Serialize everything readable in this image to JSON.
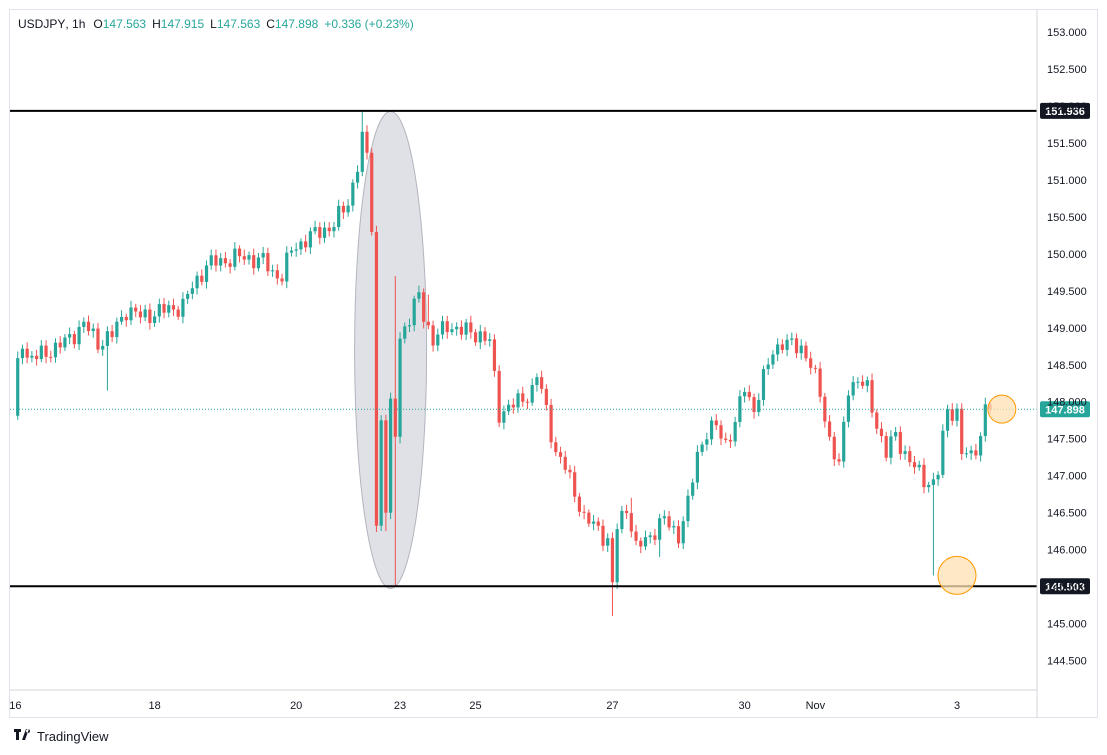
{
  "legend": {
    "symbol": "USDJPY",
    "interval": "1h",
    "open_label": "O",
    "open": "147.563",
    "high_label": "H",
    "high": "147.915",
    "low_label": "L",
    "low": "147.563",
    "close_label": "C",
    "close": "147.898",
    "change": "+0.336 (+0.23%)"
  },
  "footer": {
    "brand": "TradingView",
    "logo_icon": "tradingview-logo-icon"
  },
  "colors": {
    "up": "#26a69a",
    "down": "#ef5350",
    "line": "#000000",
    "price_tag": "#26a69a",
    "ellipse": "#c7c9d1",
    "circle_fill": "#ffe0b2",
    "circle_stroke": "#ff9800"
  },
  "chart_data": {
    "type": "candlestick",
    "symbol": "USDJPY",
    "interval": "1h",
    "y_axis": {
      "range": [
        144.1,
        153.3
      ],
      "ticks": [
        "153.000",
        "152.500",
        "152.000",
        "151.500",
        "151.000",
        "150.500",
        "150.000",
        "149.500",
        "149.000",
        "148.500",
        "148.000",
        "147.500",
        "147.000",
        "146.500",
        "146.000",
        "145.500",
        "145.000",
        "144.500"
      ],
      "tick_values": [
        153.0,
        152.5,
        152.0,
        151.5,
        151.0,
        150.5,
        150.0,
        149.5,
        149.0,
        148.5,
        148.0,
        147.5,
        147.0,
        146.5,
        146.0,
        145.5,
        145.0,
        144.5
      ]
    },
    "x_axis": {
      "ticks": [
        "16",
        "18",
        "20",
        "23",
        "25",
        "27",
        "30",
        "Nov",
        "3"
      ],
      "tick_positions": [
        0.5,
        30,
        60,
        82,
        98,
        127,
        155,
        170,
        200
      ]
    },
    "price_path": [
      [
        0,
        147.75
      ],
      [
        1,
        148.5
      ],
      [
        2,
        148.85
      ],
      [
        3,
        148.6
      ],
      [
        5,
        148.6
      ],
      [
        8,
        148.7
      ],
      [
        11,
        148.8
      ],
      [
        15,
        149.05
      ],
      [
        18,
        148.8
      ],
      [
        21,
        148.9
      ],
      [
        24,
        149.25
      ],
      [
        27,
        149.15
      ],
      [
        30,
        149.2
      ],
      [
        33,
        149.25
      ],
      [
        36,
        149.3
      ],
      [
        38,
        149.55
      ],
      [
        41,
        149.85
      ],
      [
        44,
        149.9
      ],
      [
        47,
        149.95
      ],
      [
        50,
        149.95
      ],
      [
        53,
        149.9
      ],
      [
        55,
        149.75
      ],
      [
        57,
        149.7
      ],
      [
        59,
        150.05
      ],
      [
        62,
        150.2
      ],
      [
        65,
        150.3
      ],
      [
        68,
        150.4
      ],
      [
        71,
        150.7
      ],
      [
        73,
        151.2
      ],
      [
        74,
        151.55
      ],
      [
        75,
        151.3
      ],
      [
        76,
        150.4
      ],
      [
        77,
        146.3
      ],
      [
        78,
        147.8
      ],
      [
        79,
        146.5
      ],
      [
        80,
        147.9
      ],
      [
        81,
        147.6
      ],
      [
        82,
        148.9
      ],
      [
        84,
        149.1
      ],
      [
        86,
        149.45
      ],
      [
        87,
        149.2
      ],
      [
        89,
        148.8
      ],
      [
        92,
        149.05
      ],
      [
        95,
        148.95
      ],
      [
        97,
        148.95
      ],
      [
        99,
        148.9
      ],
      [
        101,
        148.8
      ],
      [
        103,
        147.85
      ],
      [
        106,
        147.95
      ],
      [
        110,
        148.15
      ],
      [
        111,
        148.35
      ],
      [
        113,
        147.9
      ],
      [
        115,
        147.3
      ],
      [
        117,
        147.1
      ],
      [
        119,
        146.8
      ],
      [
        121,
        146.4
      ],
      [
        124,
        146.3
      ],
      [
        126,
        146.1
      ],
      [
        127,
        145.5
      ],
      [
        128,
        146.3
      ],
      [
        130,
        146.6
      ],
      [
        132,
        146.0
      ],
      [
        135,
        146.2
      ],
      [
        138,
        146.4
      ],
      [
        141,
        146.2
      ],
      [
        143,
        146.6
      ],
      [
        145,
        147.3
      ],
      [
        147,
        147.6
      ],
      [
        149,
        147.65
      ],
      [
        151,
        147.45
      ],
      [
        153,
        147.7
      ],
      [
        155,
        148.2
      ],
      [
        157,
        147.9
      ],
      [
        159,
        148.3
      ],
      [
        161,
        148.7
      ],
      [
        163,
        148.8
      ],
      [
        165,
        148.75
      ],
      [
        167,
        148.75
      ],
      [
        169,
        148.5
      ],
      [
        171,
        148.1
      ],
      [
        173,
        147.5
      ],
      [
        175,
        147.1
      ],
      [
        177,
        148.2
      ],
      [
        179,
        148.3
      ],
      [
        181,
        148.15
      ],
      [
        183,
        147.7
      ],
      [
        185,
        147.3
      ],
      [
        187,
        147.55
      ],
      [
        189,
        147.3
      ],
      [
        191,
        147.1
      ],
      [
        193,
        146.95
      ],
      [
        195,
        146.9
      ],
      [
        196,
        147.05
      ],
      [
        197,
        147.5
      ],
      [
        198,
        147.9
      ],
      [
        200,
        147.85
      ],
      [
        201,
        147.3
      ],
      [
        203,
        147.25
      ],
      [
        205,
        147.56
      ],
      [
        206,
        147.9
      ]
    ],
    "current_price": 147.898,
    "horizontal_lines": [
      {
        "value": 151.936,
        "label": "151.936"
      },
      {
        "value": 145.503,
        "label": "145.503"
      }
    ],
    "price_tag": {
      "value": 147.898,
      "label": "147.898"
    },
    "annotations": [
      {
        "kind": "ellipse",
        "around": "spike near 23"
      },
      {
        "kind": "circle",
        "at": "low wick near Nov 2"
      },
      {
        "kind": "circle",
        "at": "last candle"
      }
    ]
  }
}
